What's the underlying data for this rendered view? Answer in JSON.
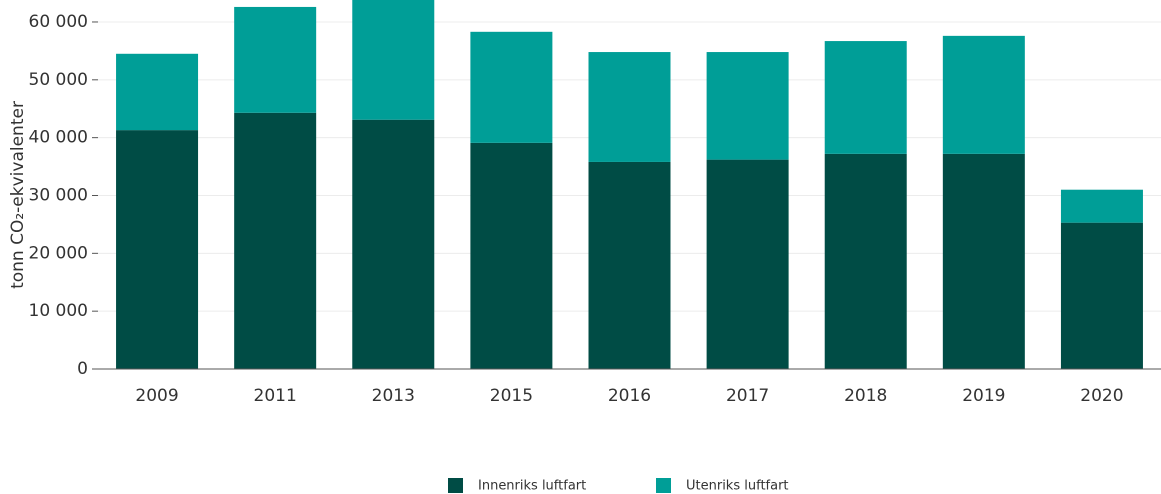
{
  "chart_data": {
    "type": "stacked_bar",
    "y_label": "tonn CO₂-ekvivalenter",
    "categories": [
      "2009",
      "2011",
      "2013",
      "2015",
      "2016",
      "2017",
      "2018",
      "2019",
      "2020"
    ],
    "series": [
      {
        "name": "Innenriks luftfart",
        "color": "#004c45",
        "values": [
          41300,
          44300,
          43100,
          39100,
          35800,
          36200,
          37200,
          37200,
          25300
        ]
      },
      {
        "name": "Utenriks luftfart",
        "color": "#009e97",
        "values": [
          13200,
          18300,
          21000,
          19200,
          19000,
          18600,
          19500,
          20400,
          5700
        ]
      }
    ],
    "ylim": [
      0,
      63800
    ],
    "yticks": [
      0,
      {
        "value": 10000,
        "label": "10 000"
      },
      {
        "value": 20000,
        "label": "20 000"
      },
      {
        "value": 30000,
        "label": "30 000"
      },
      {
        "value": 40000,
        "label": "40 000"
      },
      {
        "value": 50000,
        "label": "50 000"
      },
      {
        "value": 60000,
        "label": "60 000"
      }
    ],
    "grid": true,
    "legend": "bottom"
  }
}
